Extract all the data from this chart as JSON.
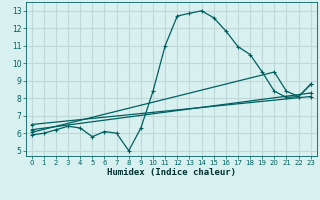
{
  "xlabel": "Humidex (Indice chaleur)",
  "bg_color": "#d8f0f0",
  "grid_color": "#c0d8d8",
  "line_color": "#006060",
  "xlim": [
    -0.5,
    23.5
  ],
  "ylim": [
    4.7,
    13.5
  ],
  "xticks": [
    0,
    1,
    2,
    3,
    4,
    5,
    6,
    7,
    8,
    9,
    10,
    11,
    12,
    13,
    14,
    15,
    16,
    17,
    18,
    19,
    20,
    21,
    22,
    23
  ],
  "yticks": [
    5,
    6,
    7,
    8,
    9,
    10,
    11,
    12,
    13
  ],
  "series": [
    {
      "x": [
        0,
        1,
        2,
        3,
        4,
        5,
        6,
        7,
        8,
        9,
        10,
        11,
        12,
        13,
        14,
        15,
        16,
        17,
        18,
        19,
        20,
        21,
        22,
        23
      ],
      "y": [
        5.9,
        6.0,
        6.2,
        6.4,
        6.3,
        5.8,
        6.1,
        6.0,
        5.0,
        6.3,
        8.4,
        11.0,
        12.7,
        12.85,
        13.0,
        12.6,
        11.85,
        10.95,
        10.5,
        9.5,
        8.4,
        8.05,
        8.1,
        8.8
      ]
    },
    {
      "x": [
        0,
        20,
        21,
        22,
        23
      ],
      "y": [
        6.05,
        9.5,
        8.4,
        8.1,
        8.8
      ]
    },
    {
      "x": [
        0,
        23
      ],
      "y": [
        6.2,
        8.3
      ]
    },
    {
      "x": [
        0,
        23
      ],
      "y": [
        6.5,
        8.1
      ]
    }
  ]
}
